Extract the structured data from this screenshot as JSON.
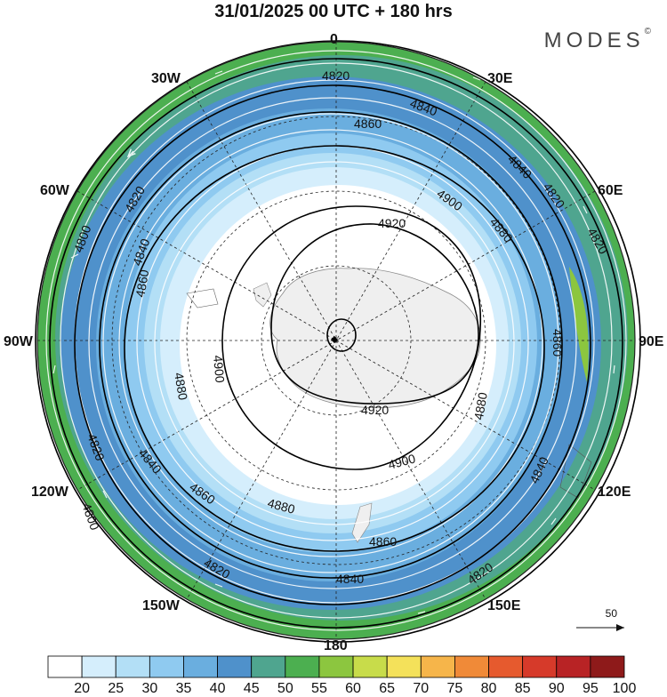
{
  "title": "31/01/2025  00 UTC  + 180 hrs",
  "brand": {
    "name": "MODES",
    "mark": "©"
  },
  "longitude_labels": {
    "0": "0",
    "30E": "30E",
    "60E": "60E",
    "90E": "90E",
    "120E": "120E",
    "150E": "150E",
    "180": "180",
    "150W": "150W",
    "120W": "120W",
    "90W": "90W",
    "60W": "60W",
    "30W": "30W"
  },
  "contour_labels": {
    "4800": "4800",
    "4820": "4820",
    "4840": "4840",
    "4860": "4860",
    "4880": "4880",
    "4900": "4900",
    "4920": "4920"
  },
  "wind_scale_label": "50",
  "colorbar": {
    "labels": [
      "20",
      "25",
      "30",
      "35",
      "40",
      "45",
      "50",
      "55",
      "60",
      "65",
      "70",
      "75",
      "80",
      "85",
      "90",
      "95",
      "100"
    ],
    "colors": [
      "#ffffff",
      "#d5eefc",
      "#b3dff6",
      "#8fcaf0",
      "#6aaedf",
      "#4f91cb",
      "#4fa58f",
      "#4caf50",
      "#8cc63f",
      "#c8dc4a",
      "#f4e15a",
      "#f6b54a",
      "#f08a38",
      "#e65a2e",
      "#d63a2a",
      "#b82325",
      "#8e1a1a"
    ]
  }
}
